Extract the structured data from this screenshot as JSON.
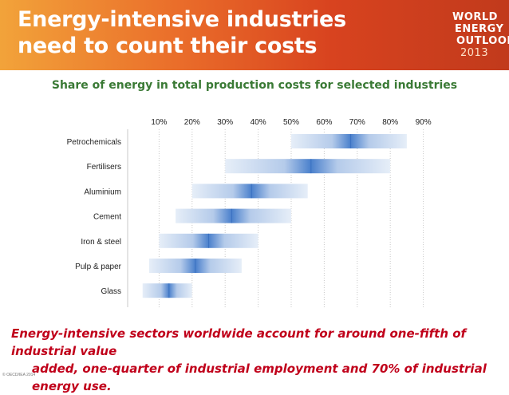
{
  "header": {
    "title": "Energy-intensive industries\nneed to count their costs",
    "logo_lines": [
      "WORLD",
      "ENERGY",
      "OUTLOOK",
      "2013"
    ]
  },
  "chart_data": {
    "type": "bar",
    "title": "Share of energy in total production costs for selected industries",
    "xlabel": "",
    "ylabel": "",
    "x_ticks": [
      "10%",
      "20%",
      "30%",
      "40%",
      "50%",
      "60%",
      "70%",
      "80%",
      "90%"
    ],
    "xlim": [
      0,
      95
    ],
    "grid": true,
    "categories": [
      "Petrochemicals",
      "Fertilisers",
      "Aluminium",
      "Cement",
      "Iron & steel",
      "Pulp & paper",
      "Glass"
    ],
    "series": [
      {
        "low": [
          50,
          30,
          20,
          15,
          10,
          7,
          5
        ],
        "mid": [
          68,
          56,
          38,
          32,
          25,
          21,
          13
        ],
        "high": [
          85,
          80,
          55,
          50,
          40,
          35,
          20
        ]
      }
    ],
    "colors": {
      "range_light": "#e6eef8",
      "range_dark": "#4a80cc"
    }
  },
  "caption": {
    "line1": "Energy-intensive sectors worldwide account for around one-fifth of industrial value",
    "line2": "added, one-quarter of industrial employment and 70% of industrial energy use."
  },
  "copyright": "© OECD/IEA 2014"
}
